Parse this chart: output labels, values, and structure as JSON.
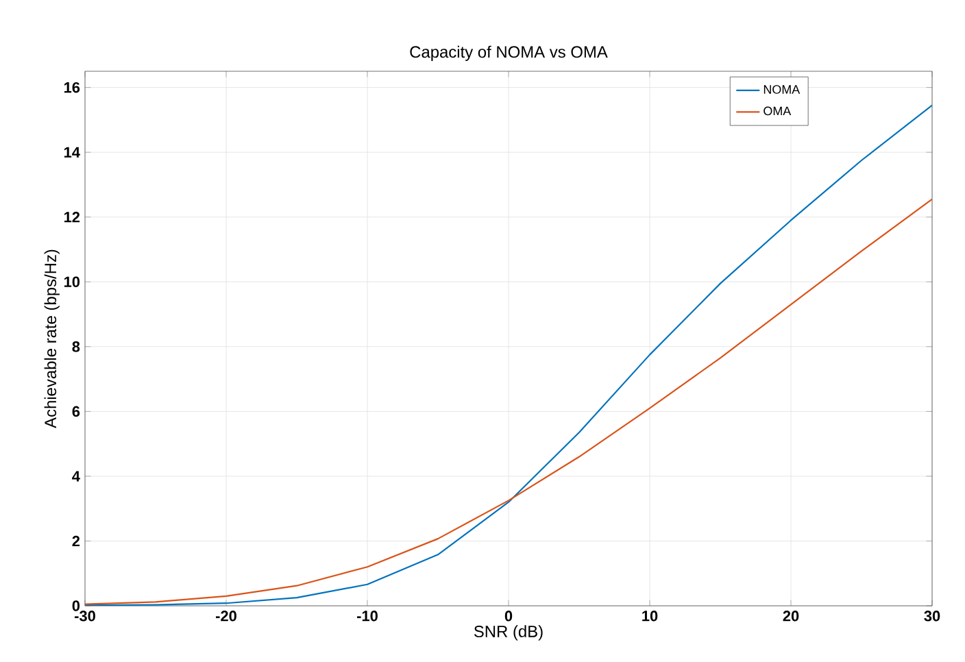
{
  "chart_data": {
    "type": "line",
    "title": "Capacity of NOMA vs OMA",
    "xlabel": "SNR (dB)",
    "ylabel": "Achievable rate (bps/Hz)",
    "x": [
      -30,
      -25,
      -20,
      -15,
      -10,
      -5,
      0,
      5,
      10,
      15,
      20,
      25,
      30
    ],
    "series": [
      {
        "name": "NOMA",
        "color": "#0072bd",
        "values": [
          0.02,
          0.03,
          0.08,
          0.25,
          0.66,
          1.58,
          3.2,
          5.35,
          7.75,
          9.95,
          11.9,
          13.75,
          15.45
        ]
      },
      {
        "name": "OMA",
        "color": "#d95319",
        "values": [
          0.05,
          0.12,
          0.3,
          0.62,
          1.2,
          2.07,
          3.25,
          4.6,
          6.1,
          7.65,
          9.3,
          10.95,
          12.55
        ]
      }
    ],
    "xlim": [
      -30,
      30
    ],
    "ylim": [
      0,
      16.5
    ],
    "xticks": [
      -30,
      -20,
      -10,
      0,
      10,
      20,
      30
    ],
    "yticks": [
      0,
      2,
      4,
      6,
      8,
      10,
      12,
      14,
      16
    ],
    "grid": true,
    "legend": "top right",
    "marker": "none",
    "line_style": "solid"
  }
}
